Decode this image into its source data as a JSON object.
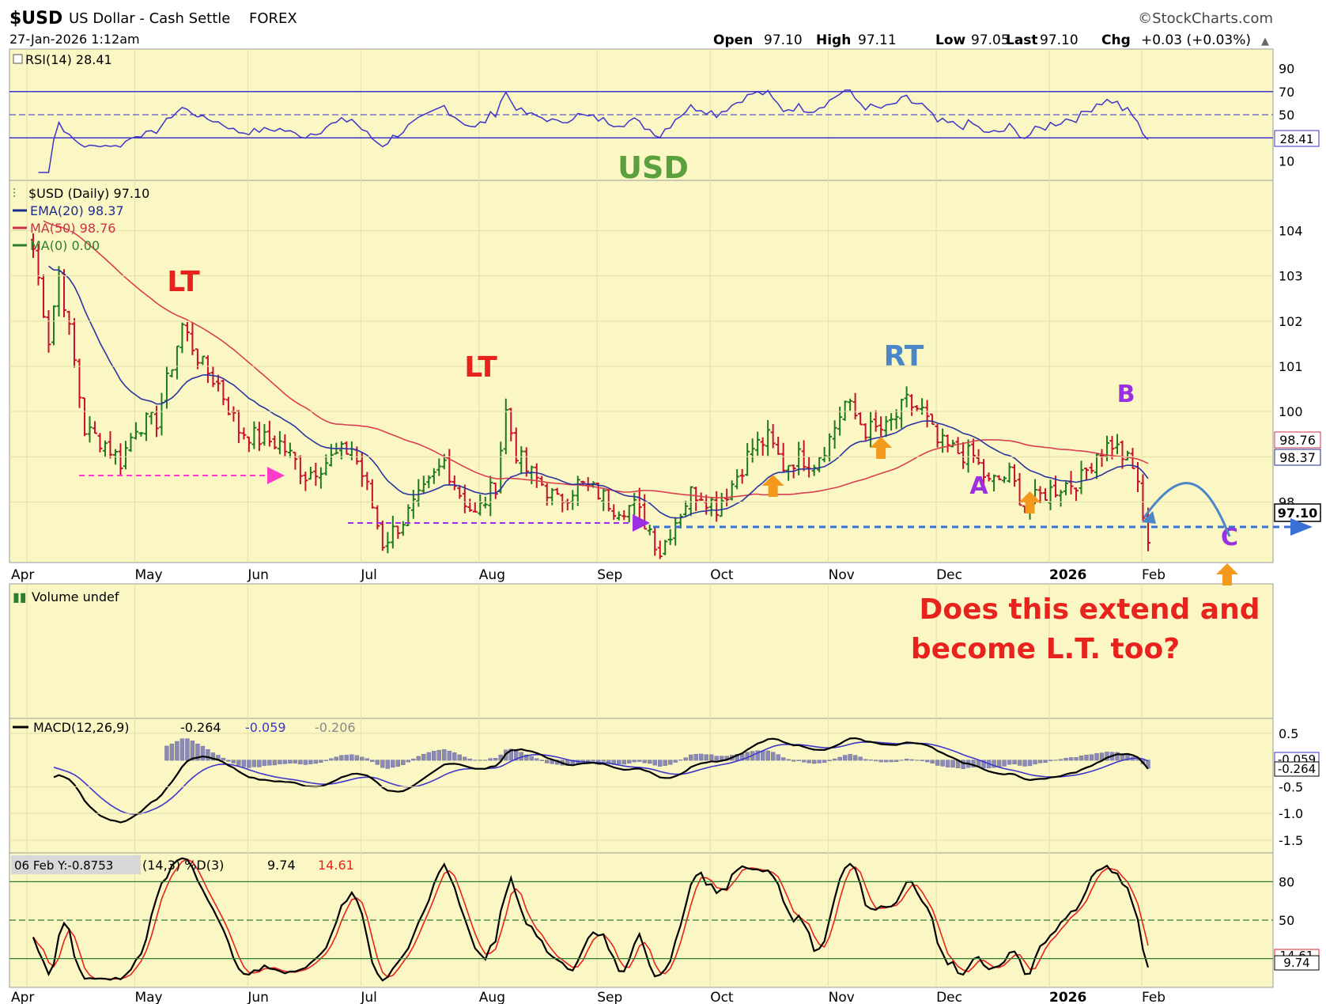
{
  "header": {
    "symbol": "$USD",
    "name": "US Dollar - Cash Settle",
    "exchange": "FOREX",
    "datetime": "27-Jan-2026 1:12am",
    "brand": "©StockCharts.com",
    "open_label": "Open",
    "open": "97.10",
    "high_label": "High",
    "high": "97.11",
    "low_label": "Low",
    "low": "97.05",
    "last_label": "Last",
    "last": "97.10",
    "chg_label": "Chg",
    "chg": "+0.03 (+0.03%)",
    "chg_arrow": "▲"
  },
  "rsi_panel": {
    "legend": "RSI(14) 28.41",
    "value_tag": "28.41",
    "ticks": [
      "90",
      "70",
      "50",
      "10"
    ],
    "tick_values": [
      90,
      70,
      50,
      10
    ],
    "range": [
      0,
      100
    ],
    "levels": [
      30,
      50,
      70
    ]
  },
  "price_panel": {
    "legend_main": "$USD (Daily) 97.10",
    "legend_ema": "EMA(20) 98.37",
    "legend_ma50": "MA(50) 98.76",
    "legend_ma0": "MA(0) 0.00",
    "ticks": [
      "104",
      "103",
      "102",
      "101",
      "100",
      "99",
      "98"
    ],
    "tick_values": [
      104,
      103,
      102,
      101,
      100,
      99,
      98
    ],
    "range": [
      96.75,
      104.9
    ],
    "tag_ma50": "98.76",
    "tag_ema": "98.37",
    "tag_last": "97.10",
    "support_level": 96.85
  },
  "annotations": {
    "usd": "USD",
    "lt1": "LT",
    "lt2": "LT",
    "rt": "RT",
    "a": "A",
    "b": "B",
    "c": "C",
    "question_line1": "Does this extend and",
    "question_line2": "become L.T. too?"
  },
  "volume_panel": {
    "legend": "Volume undef"
  },
  "macd_panel": {
    "legend_name": "MACD(12,26,9)",
    "legend_v1": "-0.264",
    "legend_v2": "-0.059",
    "legend_v3": "-0.206",
    "ticks": [
      "0.5",
      "-0.5",
      "-1.0",
      "-1.5"
    ],
    "tick_values": [
      0.5,
      -0.5,
      -1.0,
      -1.5
    ],
    "range": [
      -1.65,
      0.72
    ],
    "tag_signal": "-0.059",
    "tag_macd": "-0.264"
  },
  "stoch_panel": {
    "legend_tooltip": "06 Feb Y:-0.8753",
    "legend_rest": "(14,3) %D(3)",
    "legend_v1": "9.74",
    "legend_v2": "14.61",
    "ticks": [
      "80",
      "50",
      "20"
    ],
    "tick_values": [
      80,
      50,
      20
    ],
    "range": [
      0,
      100
    ],
    "tag_k": "14.61",
    "tag_d": "9.74"
  },
  "x_axis": {
    "months": [
      "Apr",
      "May",
      "Jun",
      "Jul",
      "Aug",
      "Sep",
      "Oct",
      "Nov",
      "Dec",
      "2026",
      "Feb"
    ],
    "month_index": [
      0,
      21,
      43,
      65,
      88,
      111,
      133,
      156,
      177,
      199,
      222
    ]
  },
  "chart_data": {
    "type": "ohlc",
    "title": "$USD US Dollar - Cash Settle FOREX",
    "x": "trading days, early Apr 2025 to 27-Jan-2026",
    "price_anchors": [
      [
        0,
        103.6
      ],
      [
        3,
        101.6
      ],
      [
        5,
        103.1
      ],
      [
        8,
        101.1
      ],
      [
        10,
        99.6
      ],
      [
        14,
        99.3
      ],
      [
        17,
        98.9
      ],
      [
        20,
        99.7
      ],
      [
        24,
        99.8
      ],
      [
        29,
        101.9
      ],
      [
        33,
        101.0
      ],
      [
        36,
        100.6
      ],
      [
        40,
        99.6
      ],
      [
        44,
        99.4
      ],
      [
        48,
        99.3
      ],
      [
        53,
        98.6
      ],
      [
        57,
        98.9
      ],
      [
        62,
        99.2
      ],
      [
        65,
        98.3
      ],
      [
        68,
        97.1
      ],
      [
        72,
        97.6
      ],
      [
        76,
        98.2
      ],
      [
        80,
        98.9
      ],
      [
        83,
        98.2
      ],
      [
        86,
        97.7
      ],
      [
        90,
        98.4
      ],
      [
        92,
        100.0
      ],
      [
        94,
        99.1
      ],
      [
        96,
        98.7
      ],
      [
        99,
        98.4
      ],
      [
        102,
        98.0
      ],
      [
        106,
        98.4
      ],
      [
        110,
        98.2
      ],
      [
        113,
        97.9
      ],
      [
        117,
        97.9
      ],
      [
        120,
        97.4
      ],
      [
        122,
        96.9
      ],
      [
        125,
        97.6
      ],
      [
        128,
        98.2
      ],
      [
        130,
        98.2
      ],
      [
        133,
        97.9
      ],
      [
        136,
        98.4
      ],
      [
        140,
        99.2
      ],
      [
        143,
        99.4
      ],
      [
        146,
        98.8
      ],
      [
        149,
        99.0
      ],
      [
        152,
        98.9
      ],
      [
        155,
        99.4
      ],
      [
        158,
        100.2
      ],
      [
        162,
        99.6
      ],
      [
        166,
        99.6
      ],
      [
        170,
        100.2
      ],
      [
        173,
        100.0
      ],
      [
        176,
        99.3
      ],
      [
        180,
        99.1
      ],
      [
        183,
        99.0
      ],
      [
        186,
        98.4
      ],
      [
        190,
        98.6
      ],
      [
        193,
        97.9
      ],
      [
        197,
        98.2
      ],
      [
        201,
        98.4
      ],
      [
        204,
        98.5
      ],
      [
        207,
        99.1
      ],
      [
        210,
        99.3
      ],
      [
        213,
        98.9
      ],
      [
        215,
        98.5
      ],
      [
        216,
        97.5
      ],
      [
        217,
        97.1
      ]
    ],
    "series": [
      {
        "name": "$USD (Daily)",
        "last": 97.1
      },
      {
        "name": "EMA(20)",
        "last": 98.37
      },
      {
        "name": "MA(50)",
        "last": 98.76
      },
      {
        "name": "RSI(14)",
        "last": 28.41
      },
      {
        "name": "MACD(12,26,9)",
        "values_last": [
          -0.264,
          -0.059,
          -0.206
        ]
      },
      {
        "name": "%D(3)",
        "values_last": [
          9.74,
          14.61
        ]
      }
    ],
    "y_price_range": [
      96.75,
      104.9
    ],
    "legend_position": "top-left"
  }
}
